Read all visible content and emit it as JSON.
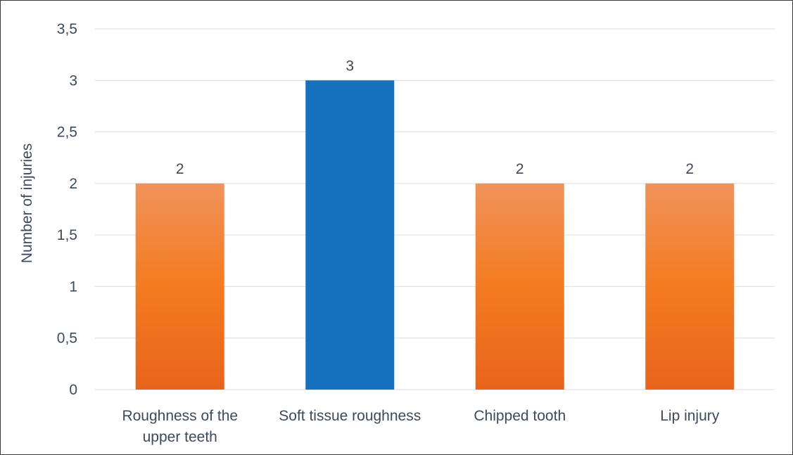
{
  "chart_data": {
    "type": "bar",
    "title": "",
    "xlabel": "",
    "ylabel": "Number of injuries",
    "ylim": [
      0,
      3.5
    ],
    "y_ticks": [
      "0",
      "0,5",
      "1",
      "1,5",
      "2",
      "2,5",
      "3",
      "3,5"
    ],
    "y_tick_values": [
      0,
      0.5,
      1,
      1.5,
      2,
      2.5,
      3,
      3.5
    ],
    "categories": [
      [
        "Roughness of the",
        "upper teeth"
      ],
      [
        "Soft tissue roughness"
      ],
      [
        "Chipped tooth"
      ],
      [
        "Lip injury"
      ]
    ],
    "values": [
      2,
      3,
      2,
      2
    ],
    "data_labels": [
      "2",
      "3",
      "2",
      "2"
    ],
    "bar_colors": [
      "orange",
      "blue",
      "orange",
      "orange"
    ],
    "colors": {
      "orange_top": "#f0935a",
      "orange_mid": "#f47b20",
      "orange_bottom": "#e8641c",
      "blue": "#1570bd",
      "grid": "#d9dde3",
      "text": "#3b4a5c"
    },
    "grid": true,
    "legend": "none"
  }
}
